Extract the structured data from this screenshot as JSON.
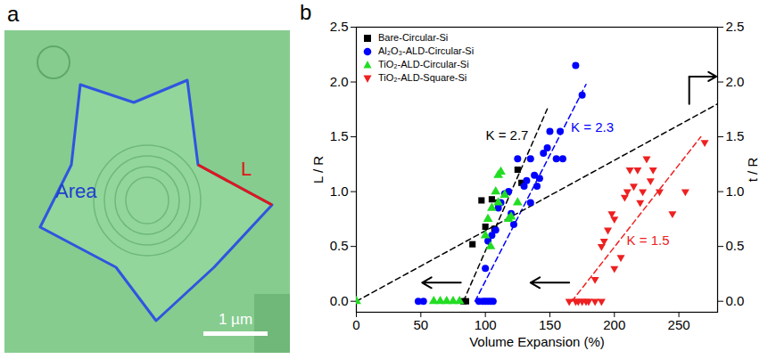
{
  "panel_a": {
    "letter": "a",
    "area_label": "Area",
    "length_label": "L",
    "scale_bar": "1 µm"
  },
  "chart_data": {
    "type": "scatter",
    "letter": "b",
    "x_label": "Volume Expansion (%)",
    "y_label": "L / R",
    "y2_label": "t / R",
    "xlim": [
      0,
      280
    ],
    "xticks": [
      0,
      50,
      100,
      150,
      200,
      250
    ],
    "ylim": [
      -0.1,
      2.5
    ],
    "yticks": [
      {
        "value": 0,
        "label": "0.0"
      },
      {
        "value": 0.5,
        "label": "0.5"
      },
      {
        "value": 1,
        "label": "1.0"
      },
      {
        "value": 1.5,
        "label": "1.5"
      },
      {
        "value": 2,
        "label": "2.0"
      },
      {
        "value": 2.5,
        "label": "2.5"
      }
    ],
    "y2lim": [
      -0.1,
      2.5
    ],
    "y2ticks": [
      {
        "value": 0,
        "label": "0.0"
      },
      {
        "value": 0.5,
        "label": "0.5"
      },
      {
        "value": 1,
        "label": "1.0"
      },
      {
        "value": 1.5,
        "label": "1.5"
      },
      {
        "value": 2,
        "label": "2.0"
      },
      {
        "value": 2.5,
        "label": "2.5"
      }
    ],
    "legend": "top-left",
    "series": [
      {
        "name": "Bare-Circular-Si",
        "color": "#000000",
        "marker": "square",
        "x": [
          83,
          85,
          90,
          97,
          100,
          105,
          107,
          110,
          125,
          128
        ],
        "values": [
          0,
          0,
          0.52,
          0.92,
          0.68,
          0.93,
          0.66,
          0.9,
          1.2,
          1.08
        ]
      },
      {
        "name": "Al₂O₃-ALD-Circular-Si",
        "color": "#0000ff",
        "marker": "circle",
        "x": [
          48,
          52,
          95,
          98,
          100,
          102,
          104,
          106,
          100,
          102,
          105,
          108,
          110,
          112,
          115,
          118,
          120,
          122,
          125,
          130,
          132,
          135,
          138,
          140,
          145,
          148,
          150,
          155,
          158,
          160,
          170,
          175,
          135,
          142
        ],
        "values": [
          0,
          0,
          0,
          0,
          0,
          0,
          0,
          0,
          0.3,
          0.55,
          0.6,
          0.65,
          0.85,
          0.9,
          0.98,
          1.0,
          0.8,
          0.7,
          1.3,
          1.05,
          1.1,
          1.3,
          1.15,
          1.05,
          1.35,
          1.4,
          1.55,
          1.3,
          1.55,
          1.3,
          2.15,
          1.88,
          0.9,
          1.12
        ]
      },
      {
        "name": "TiO₂-ALD-Circular-Si",
        "color": "#22dd22",
        "marker": "triangle",
        "x": [
          0,
          60,
          65,
          70,
          75,
          80,
          100,
          102,
          104,
          105,
          108,
          110,
          112,
          115,
          118,
          120,
          125,
          110
        ],
        "values": [
          0,
          0,
          0,
          0,
          0,
          0,
          0.6,
          0.75,
          0.5,
          0.85,
          1.0,
          0.9,
          1.18,
          0.97,
          0.75,
          0.77,
          0.9,
          1.15
        ]
      },
      {
        "name": "TiO₂-ALD-Square-Si",
        "color": "#ee2020",
        "marker": "triangle-down",
        "x": [
          165,
          170,
          172,
          175,
          178,
          180,
          185,
          190,
          185,
          190,
          192,
          195,
          198,
          200,
          205,
          208,
          210,
          212,
          215,
          218,
          220,
          222,
          225,
          228,
          230,
          235,
          245,
          255,
          270,
          200
        ],
        "values": [
          0,
          0,
          0,
          0,
          0,
          0,
          0,
          0,
          0.2,
          0.5,
          0.55,
          0.65,
          0.8,
          0.75,
          0.4,
          0.95,
          1.0,
          1.2,
          1.05,
          1.2,
          0.9,
          1.0,
          1.3,
          1.1,
          1.2,
          1.0,
          0.8,
          1.0,
          1.45,
          0.3
        ]
      }
    ],
    "fits": [
      {
        "label": "K = 2.7",
        "color": "#000000",
        "line_style": "dashed",
        "x": [
          83,
          148
        ],
        "values": [
          0,
          1.755
        ]
      },
      {
        "label": "K = 2.3",
        "color": "#0000ff",
        "line_style": "dashed",
        "x": [
          92,
          178
        ],
        "values": [
          0,
          1.978
        ]
      },
      {
        "label": "K = 1.5",
        "color": "#ee2020",
        "line_style": "dashed",
        "x": [
          167,
          267
        ],
        "values": [
          0,
          1.5
        ]
      },
      {
        "axis": "y2",
        "color": "#000000",
        "line_style": "dashed",
        "x": [
          0,
          280
        ],
        "values": [
          0,
          1.8
        ]
      }
    ]
  }
}
